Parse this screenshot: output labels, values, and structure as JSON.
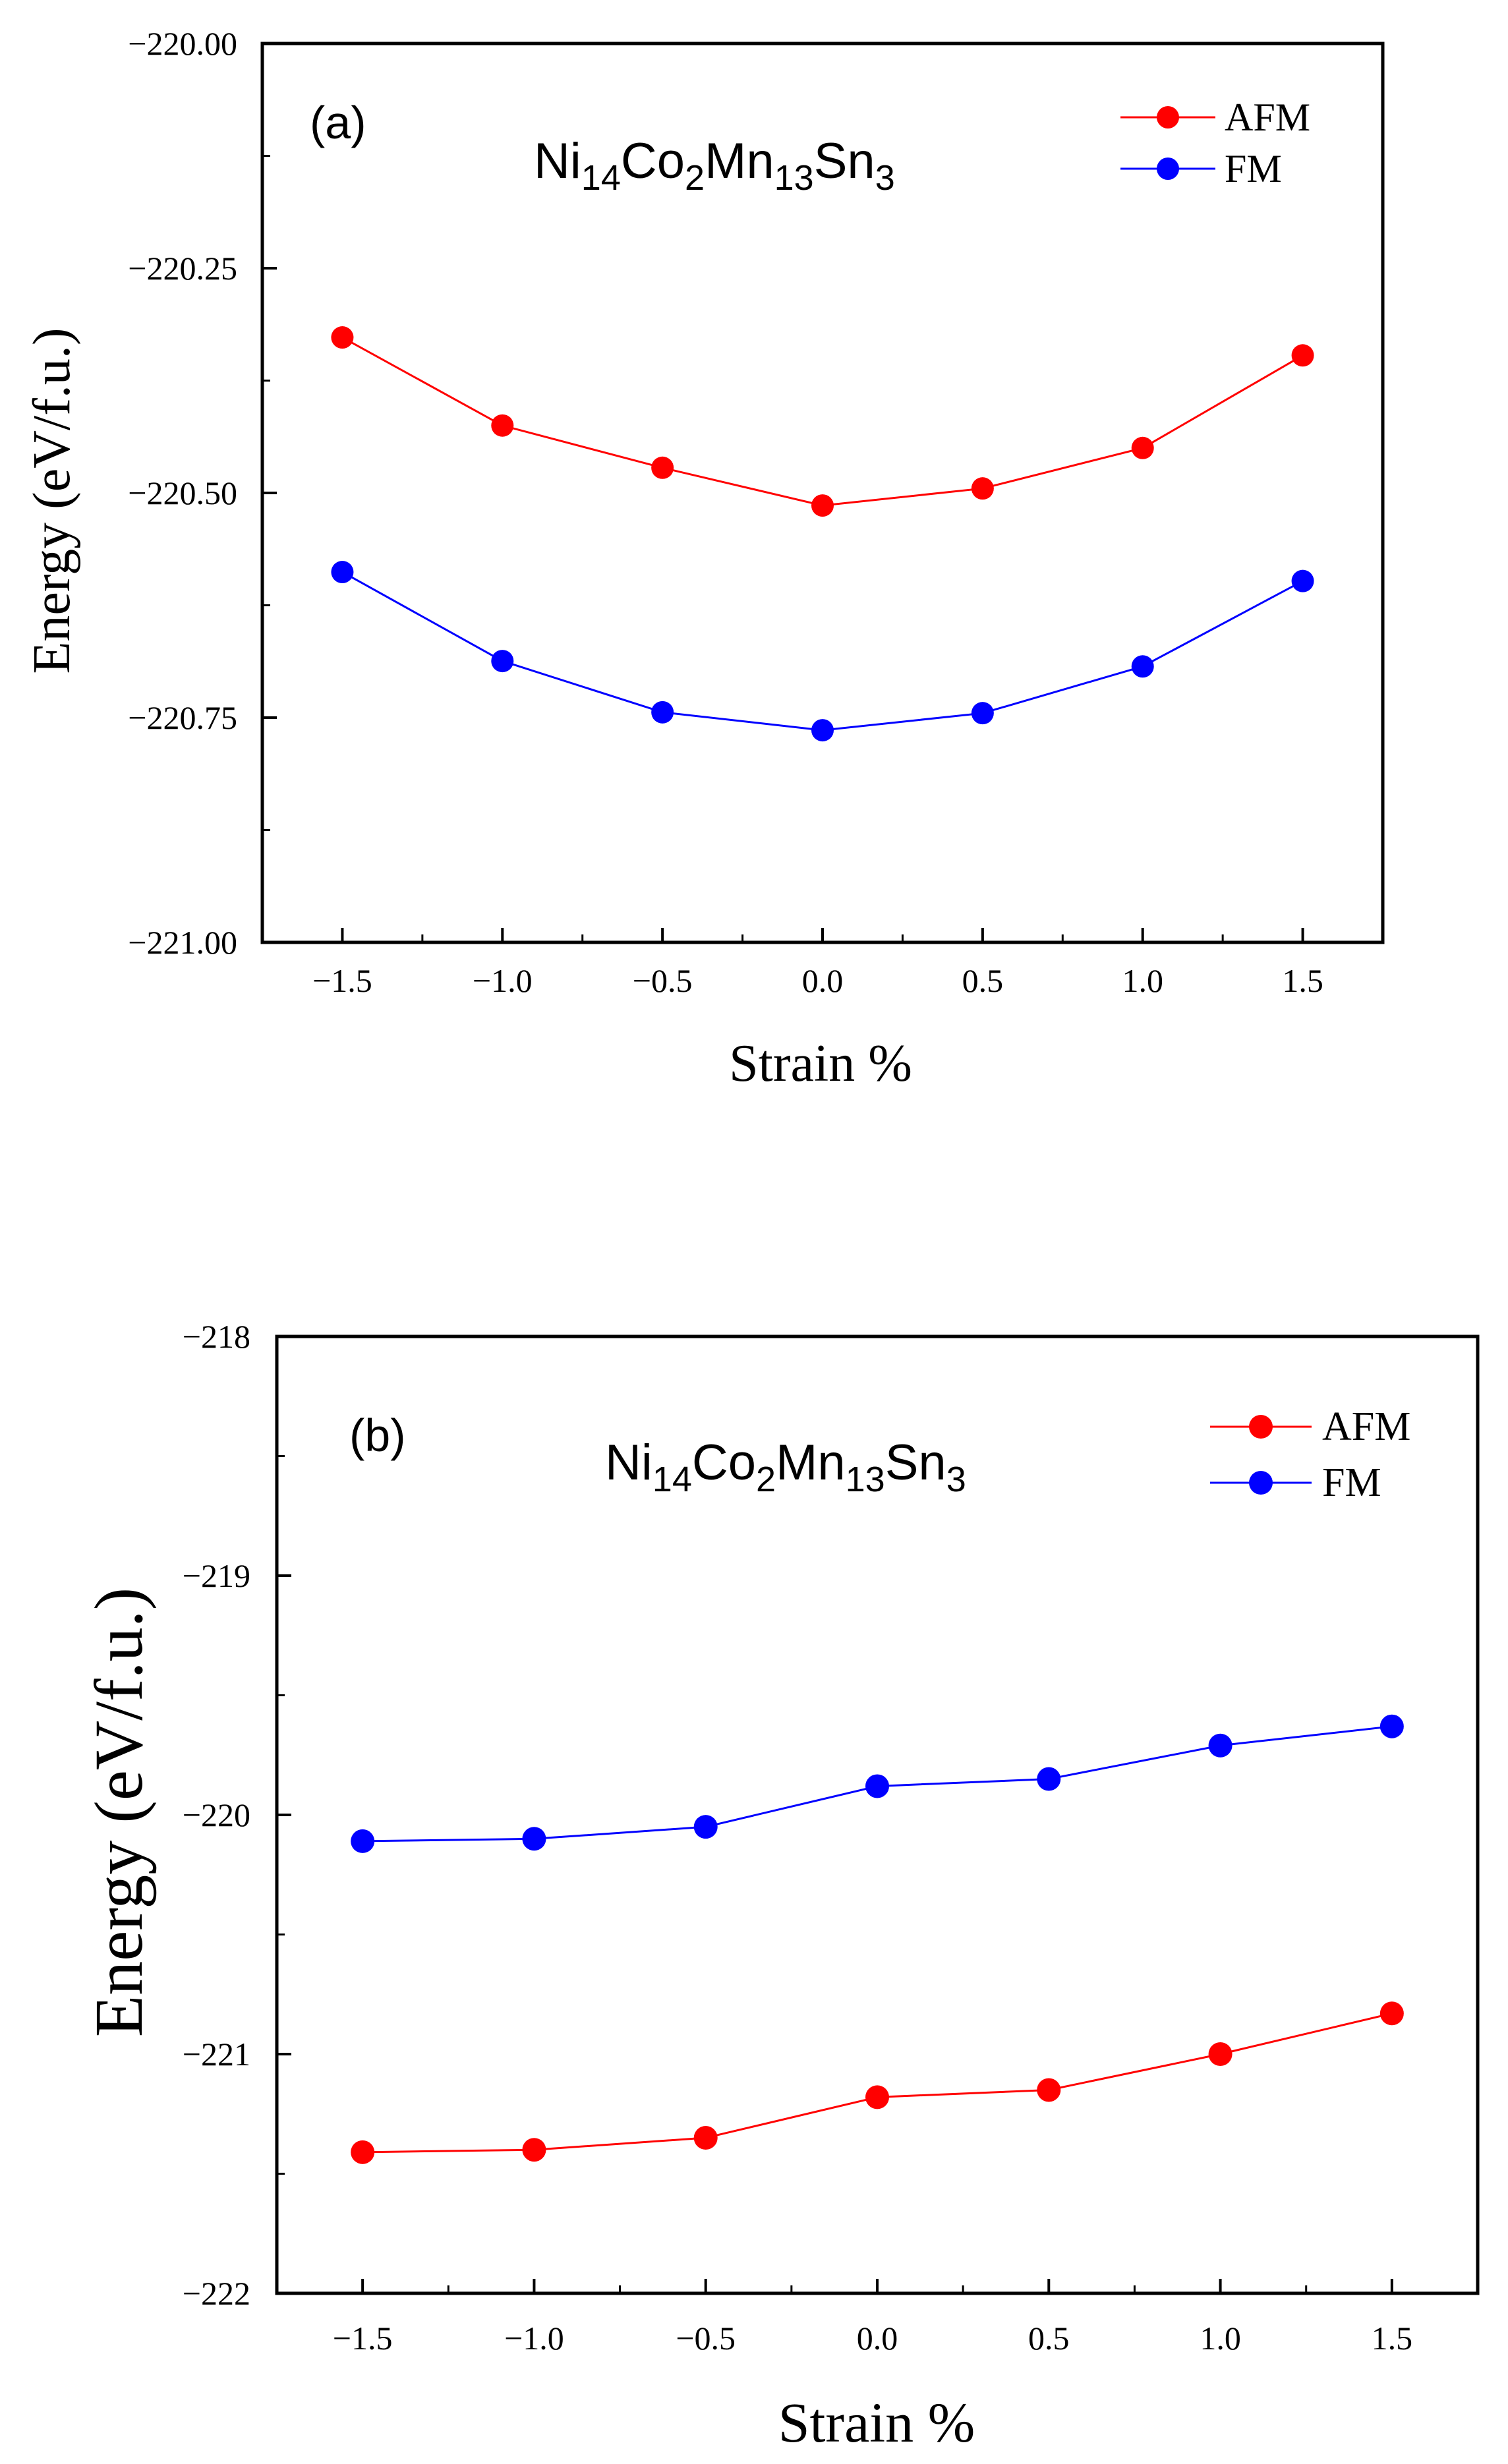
{
  "chart_data": [
    {
      "type": "line",
      "panel_label": "(a)",
      "title": {
        "base": [
          "Ni",
          "Co",
          "Mn",
          "Sn"
        ],
        "subs": [
          "14",
          "2",
          "13",
          "3"
        ]
      },
      "xlabel": "Strain %",
      "ylabel": "Energy (eV/f.u.)",
      "xlim": [
        -1.75,
        1.75
      ],
      "ylim": [
        -221.0,
        -220.0
      ],
      "xticks": [
        -1.5,
        -1.0,
        -0.5,
        0.0,
        0.5,
        1.0,
        1.5
      ],
      "xtick_labels": [
        "−1.5",
        "−1.0",
        "−0.5",
        "0.0",
        "0.5",
        "1.0",
        "1.5"
      ],
      "yticks": [
        -221.0,
        -220.75,
        -220.5,
        -220.25,
        -220.0
      ],
      "ytick_labels": [
        "−221.00",
        "−220.75",
        "−220.50",
        "−220.25",
        "−220.00"
      ],
      "legend_position": "top-right",
      "x": [
        -1.5,
        -1.0,
        -0.5,
        0.0,
        0.5,
        1.0,
        1.5
      ],
      "series": [
        {
          "name": "AFM",
          "color": "#ff0000",
          "values": [
            -220.327,
            -220.425,
            -220.472,
            -220.514,
            -220.495,
            -220.45,
            -220.347
          ]
        },
        {
          "name": "FM",
          "color": "#0000ff",
          "values": [
            -220.588,
            -220.687,
            -220.744,
            -220.764,
            -220.745,
            -220.693,
            -220.598
          ]
        }
      ]
    },
    {
      "type": "line",
      "panel_label": "(b)",
      "title": {
        "base": [
          "Ni",
          "Co",
          "Mn",
          "Sn"
        ],
        "subs": [
          "14",
          "2",
          "13",
          "3"
        ]
      },
      "xlabel": "Strain %",
      "ylabel": "Energy (eV/f.u.)",
      "xlim": [
        -1.75,
        1.75
      ],
      "ylim": [
        -222,
        -218
      ],
      "xticks": [
        -1.5,
        -1.0,
        -0.5,
        0.0,
        0.5,
        1.0,
        1.5
      ],
      "xtick_labels": [
        "−1.5",
        "−1.0",
        "−0.5",
        "0.0",
        "0.5",
        "1.0",
        "1.5"
      ],
      "yticks": [
        -222,
        -221,
        -220,
        -219,
        -218
      ],
      "ytick_labels": [
        "−222",
        "−221",
        "−220",
        "−219",
        "−218"
      ],
      "legend_position": "top-right",
      "x": [
        -1.5,
        -1.0,
        -0.5,
        0.0,
        0.5,
        1.0,
        1.5
      ],
      "series": [
        {
          "name": "AFM",
          "color": "#ff0000",
          "values": [
            -221.41,
            -221.4,
            -221.35,
            -221.18,
            -221.15,
            -221.0,
            -220.83
          ]
        },
        {
          "name": "FM",
          "color": "#0000ff",
          "values": [
            -220.11,
            -220.1,
            -220.05,
            -219.88,
            -219.85,
            -219.71,
            -219.63
          ]
        }
      ]
    }
  ]
}
